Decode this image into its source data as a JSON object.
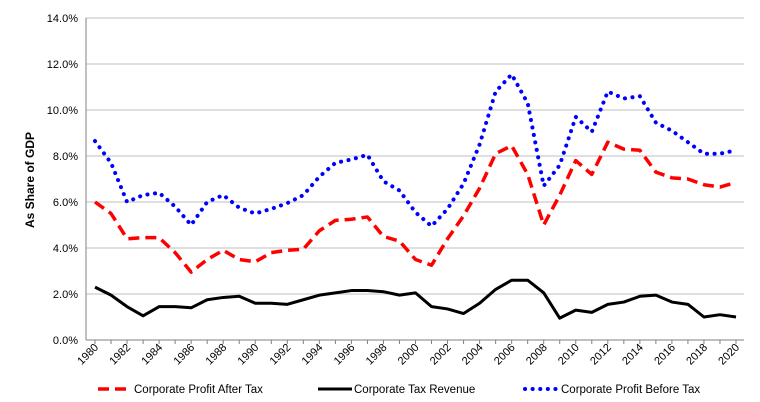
{
  "chart_data": {
    "type": "line",
    "title": "",
    "xlabel": "",
    "ylabel": "As Share of GDP",
    "xlim": [
      1980,
      2020
    ],
    "ylim": [
      0,
      14
    ],
    "y_ticks": [
      0,
      2,
      4,
      6,
      8,
      10,
      12,
      14
    ],
    "y_tick_labels": [
      "0.0%",
      "2.0%",
      "4.0%",
      "6.0%",
      "8.0%",
      "10.0%",
      "12.0%",
      "14.0%"
    ],
    "x_tick_labels": [
      "1980",
      "1982",
      "1984",
      "1986",
      "1988",
      "1990",
      "1992",
      "1994",
      "1996",
      "1998",
      "2000",
      "2002",
      "2004",
      "2006",
      "2008",
      "2010",
      "2012",
      "2014",
      "2016",
      "2018",
      "2020"
    ],
    "x": [
      1980,
      1981,
      1982,
      1983,
      1984,
      1985,
      1986,
      1987,
      1988,
      1989,
      1990,
      1991,
      1992,
      1993,
      1994,
      1995,
      1996,
      1997,
      1998,
      1999,
      2000,
      2001,
      2002,
      2003,
      2004,
      2005,
      2006,
      2007,
      2008,
      2009,
      2010,
      2011,
      2012,
      2013,
      2014,
      2015,
      2016,
      2017,
      2018,
      2019,
      2020
    ],
    "grid": "horizontal",
    "legend_position": "bottom",
    "series": [
      {
        "name": "Corporate Profit After Tax",
        "color": "#ff0000",
        "style": "dashed",
        "values": [
          6.0,
          5.5,
          4.4,
          4.45,
          4.45,
          3.8,
          2.95,
          3.5,
          3.9,
          3.5,
          3.4,
          3.8,
          3.9,
          3.95,
          4.75,
          5.2,
          5.25,
          5.35,
          4.5,
          4.3,
          3.5,
          3.25,
          4.4,
          5.4,
          6.6,
          8.1,
          8.45,
          7.2,
          5.0,
          6.3,
          7.8,
          7.2,
          8.6,
          8.3,
          8.25,
          7.3,
          7.05,
          7.0,
          6.75,
          6.65,
          6.85
        ]
      },
      {
        "name": "Corporate Tax Revenue",
        "color": "#000000",
        "style": "solid",
        "values": [
          2.3,
          1.95,
          1.45,
          1.05,
          1.45,
          1.45,
          1.4,
          1.75,
          1.85,
          1.9,
          1.6,
          1.6,
          1.55,
          1.75,
          1.95,
          2.05,
          2.15,
          2.15,
          2.1,
          1.95,
          2.05,
          1.45,
          1.35,
          1.15,
          1.6,
          2.2,
          2.6,
          2.6,
          2.05,
          0.95,
          1.3,
          1.2,
          1.55,
          1.65,
          1.9,
          1.95,
          1.65,
          1.55,
          1.0,
          1.1,
          1.0
        ]
      },
      {
        "name": "Corporate Profit Before Tax",
        "color": "#0000ff",
        "style": "dotted",
        "values": [
          8.65,
          7.7,
          6.0,
          6.3,
          6.4,
          5.8,
          5.0,
          6.0,
          6.3,
          5.75,
          5.5,
          5.7,
          5.95,
          6.3,
          7.1,
          7.7,
          7.85,
          8.05,
          6.9,
          6.5,
          5.55,
          4.95,
          5.7,
          6.8,
          8.5,
          10.8,
          11.55,
          10.3,
          6.7,
          7.6,
          9.7,
          9.05,
          10.8,
          10.5,
          10.6,
          9.45,
          9.1,
          8.6,
          8.1,
          8.1,
          8.25
        ]
      }
    ]
  }
}
